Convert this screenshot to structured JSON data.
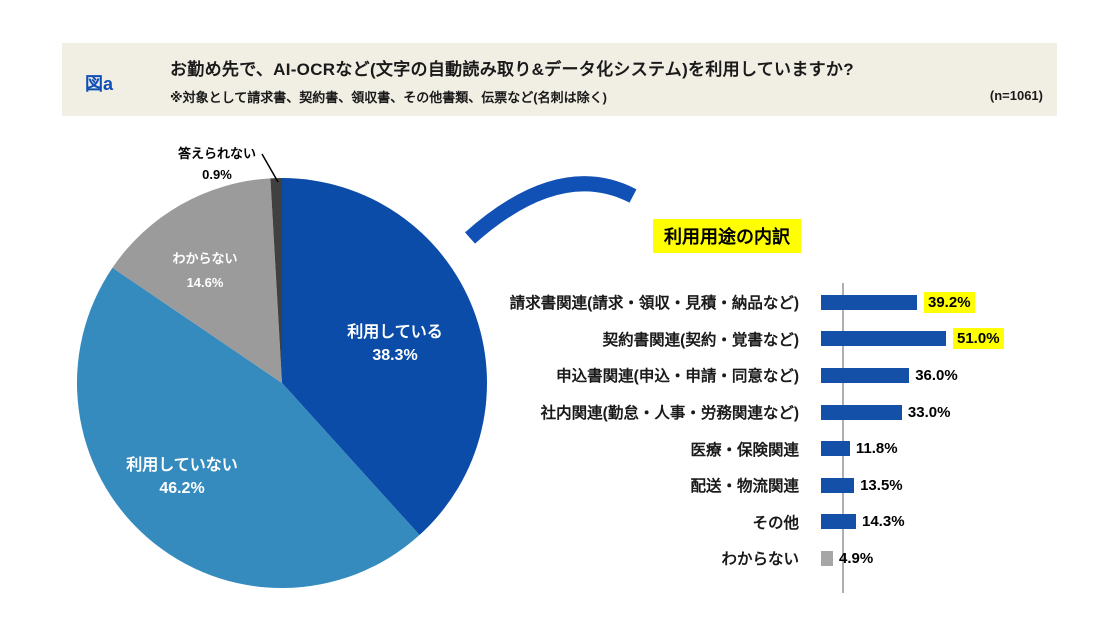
{
  "header": {
    "figure_label": "図a",
    "title": "お勤め先で、AI-OCRなど(文字の自動読み取り&データ化システム)を利用していますか?",
    "subtitle": "※対象として請求書、契約書、領収書、その他書類、伝票など(名刺は除く)",
    "sample_size": "(n=1061)"
  },
  "colors": {
    "header_background": "#F1EEE4",
    "figure_label_blue": "#0E4FB5",
    "pie_primary_blue": "#0B4CA8",
    "pie_secondary_blue": "#358BBE",
    "pie_gray": "#9B9B9B",
    "pie_dark_gray": "#404040",
    "bar_blue": "#1450A8",
    "bar_gray": "#A6A6A6",
    "highlight_yellow": "#FFFF00",
    "arrow_blue": "#1150B4"
  },
  "chart_data": [
    {
      "type": "pie",
      "labels": [
        "利用している",
        "利用していない",
        "わからない",
        "答えられない"
      ],
      "values": [
        38.3,
        46.2,
        14.6,
        0.9
      ],
      "value_suffix": "%",
      "slice_colors": [
        "#0B4CA8",
        "#358BBE",
        "#9B9B9B",
        "#404040"
      ],
      "label_text_colors": [
        "#FFFFFF",
        "#FFFFFF",
        "#FFFFFF",
        "#000000"
      ],
      "start_angle": "12-oclock",
      "direction": "clockwise",
      "legend_position": "labels-on-slices"
    },
    {
      "type": "bar",
      "orientation": "horizontal",
      "title": "利用用途の内訳",
      "categories": [
        "請求書関連(請求・領収・見積・納品など)",
        "契約書関連(契約・覚書など)",
        "申込書関連(申込・申請・同意など)",
        "社内関連(勤怠・人事・労務関連など)",
        "医療・保険関連",
        "配送・物流関連",
        "その他",
        "わからない"
      ],
      "values": [
        39.2,
        51.0,
        36.0,
        33.0,
        11.8,
        13.5,
        14.3,
        4.9
      ],
      "value_suffix": "%",
      "highlighted_indexes": [
        0,
        1
      ],
      "bar_colors": [
        "#1450A8",
        "#1450A8",
        "#1450A8",
        "#1450A8",
        "#1450A8",
        "#1450A8",
        "#1450A8",
        "#A6A6A6"
      ],
      "xlim": [
        0,
        55
      ],
      "grid": false,
      "value_labels": "outside-end"
    }
  ]
}
